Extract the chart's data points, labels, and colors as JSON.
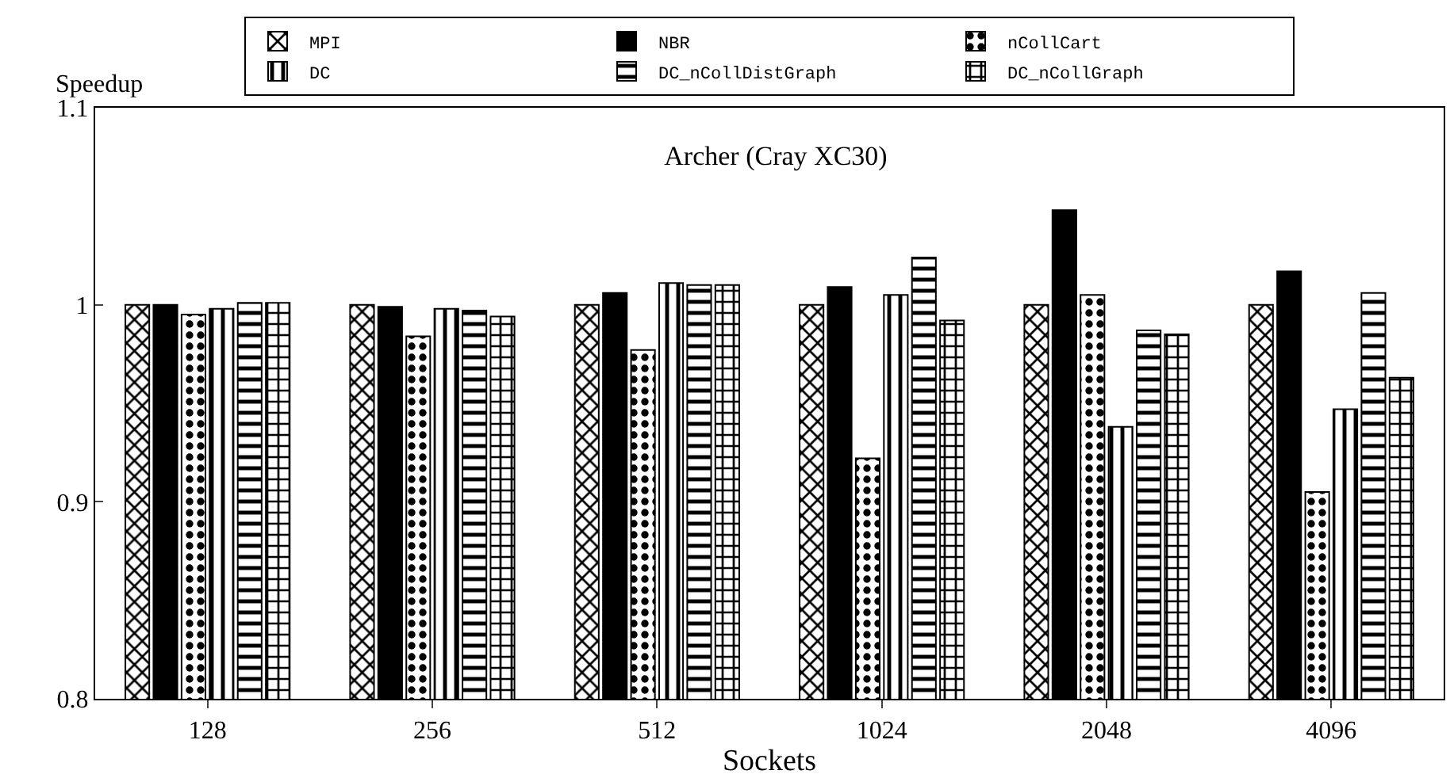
{
  "chart_data": {
    "type": "bar",
    "title": "Archer (Cray XC30)",
    "xlabel": "Sockets",
    "ylabel": "Speedup",
    "categories": [
      "128",
      "256",
      "512",
      "1024",
      "2048",
      "4096"
    ],
    "series": [
      {
        "name": "MPI",
        "color": "#000000",
        "values": [
          1.0,
          1.0,
          1.0,
          1.0,
          1.0,
          1.0
        ]
      },
      {
        "name": "NBR",
        "color": "#000000",
        "values": [
          1.0,
          0.999,
          1.006,
          1.009,
          1.048,
          1.017
        ]
      },
      {
        "name": "nCollCart",
        "color": "#000000",
        "values": [
          0.995,
          0.984,
          0.977,
          0.922,
          1.005,
          0.905
        ]
      },
      {
        "name": "DC",
        "color": "#000000",
        "values": [
          0.998,
          0.998,
          1.011,
          1.005,
          0.938,
          0.947
        ]
      },
      {
        "name": "DC_nCollDistGraph",
        "color": "#000000",
        "values": [
          1.001,
          0.997,
          1.01,
          1.024,
          0.987,
          1.006
        ]
      },
      {
        "name": "DC_nCollGraph",
        "color": "#000000",
        "values": [
          1.001,
          0.994,
          1.01,
          0.992,
          0.985,
          0.963
        ]
      }
    ],
    "ylim": [
      0.8,
      1.1
    ],
    "yticks": [
      0.8,
      0.9,
      1,
      1.1
    ],
    "grid": false,
    "legend": "top"
  }
}
